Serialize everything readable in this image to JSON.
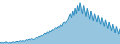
{
  "chart_data": {
    "type": "area",
    "values": [
      3,
      2,
      3,
      2,
      3,
      4,
      3,
      2,
      3,
      2,
      3,
      4,
      3,
      4,
      5,
      4,
      5,
      6,
      5,
      6,
      5,
      6,
      8,
      7,
      9,
      8,
      10,
      9,
      8,
      10,
      12,
      11,
      14,
      13,
      16,
      15,
      18,
      20,
      18,
      22,
      20,
      24,
      22,
      26,
      25,
      28,
      30,
      28,
      32,
      30,
      35,
      32,
      38,
      40,
      38,
      42,
      44,
      50,
      55,
      48,
      60,
      52,
      65,
      55,
      70,
      60,
      75,
      65,
      55,
      70,
      60,
      50,
      65,
      55,
      45,
      60,
      50,
      42,
      55,
      48,
      40,
      52,
      44,
      36,
      48,
      40,
      32,
      44,
      36,
      28,
      40,
      32,
      24,
      36,
      28,
      20,
      32,
      24,
      18,
      28
    ],
    "color": "#2b8cbf",
    "xlim": [
      0,
      99
    ],
    "ylim": [
      0,
      80
    ],
    "grid": false,
    "tick_labels": false
  }
}
